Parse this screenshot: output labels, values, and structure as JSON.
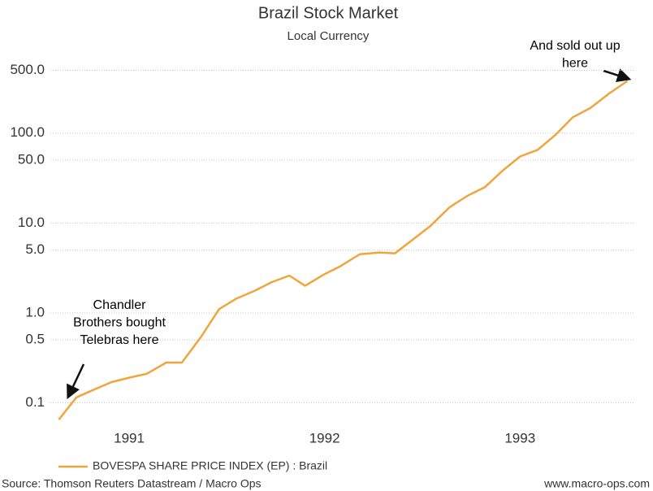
{
  "chart_data": {
    "type": "line",
    "title": "Brazil Stock Market",
    "subtitle": "Local Currency",
    "x": [
      1990.64,
      1990.73,
      1990.82,
      1990.91,
      1991.0,
      1991.09,
      1991.19,
      1991.27,
      1991.37,
      1991.46,
      1991.55,
      1991.64,
      1991.73,
      1991.82,
      1991.9,
      1992.0,
      1992.08,
      1992.18,
      1992.28,
      1992.36,
      1992.45,
      1992.54,
      1992.64,
      1992.73,
      1992.82,
      1992.91,
      1993.0,
      1993.09,
      1993.18,
      1993.27,
      1993.36,
      1993.46,
      1993.55
    ],
    "series": [
      {
        "name": "BOVESPA SHARE PRICE INDEX (EP) : Brazil",
        "color": "#f0a53c",
        "values": [
          0.065,
          0.115,
          0.14,
          0.17,
          0.19,
          0.21,
          0.28,
          0.28,
          0.55,
          1.1,
          1.45,
          1.75,
          2.2,
          2.6,
          2.0,
          2.7,
          3.3,
          4.5,
          4.7,
          4.6,
          6.5,
          9.2,
          15,
          20,
          25,
          38,
          55,
          65,
          95,
          150,
          190,
          280,
          380
        ]
      }
    ],
    "xlim": [
      1990.63,
      1993.56
    ],
    "xticks": [
      1991,
      1992,
      1993
    ],
    "ylim": [
      0.06,
      750
    ],
    "log_y": true,
    "yticks": [
      {
        "value": 500,
        "label": "500.0"
      },
      {
        "value": 100,
        "label": "100.0"
      },
      {
        "value": 50,
        "label": "50.0"
      },
      {
        "value": 10,
        "label": "10.0"
      },
      {
        "value": 5,
        "label": "5.0"
      },
      {
        "value": 1,
        "label": "1.0"
      },
      {
        "value": 0.5,
        "label": "0.5"
      },
      {
        "value": 0.1,
        "label": "0.1"
      }
    ],
    "grid": true,
    "legend": "bottom",
    "annotations": [
      {
        "lines": [
          "Chandler",
          "Brothers bought",
          "Telebras here"
        ]
      },
      {
        "lines": [
          "And sold out up",
          "here"
        ]
      }
    ],
    "source": "Source: Thomson Reuters Datastream / Macro Ops",
    "website": "www.macro-ops.com"
  }
}
